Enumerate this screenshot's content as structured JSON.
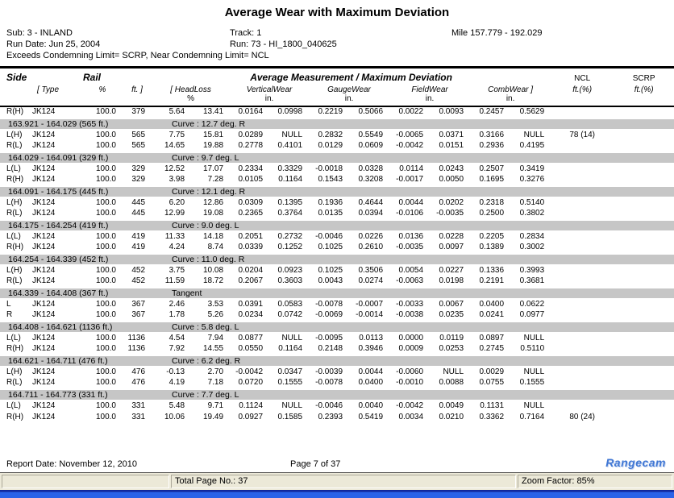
{
  "title": "Average Wear with Maximum Deviation",
  "info": {
    "sub": "Sub:  3 - INLAND",
    "track": "Track:  1",
    "mile": "Mile  157.779 - 192.029",
    "run_date": "Run Date: Jun 25, 2004",
    "run": "Run:  73 - HI_1800_040625",
    "limits_note": "Exceeds Condemning Limit= SCRP, Near Condemning Limit= NCL"
  },
  "table": {
    "headers": {
      "side": "Side",
      "rail": "Rail",
      "avg_max": "Average Measurement  / Maximum Deviation",
      "ncl": "NCL",
      "scrp": "SCRP",
      "type": "[ Type",
      "pct": "%",
      "ft": "ft. ]",
      "headloss": "[ HeadLoss",
      "vertical": "VerticalWear",
      "gauge": "GaugeWear",
      "field": "FieldWear",
      "comb": "CombWear ]",
      "ncl_unit": "ft.(%)",
      "scrp_unit": "ft.(%)",
      "headloss_unit": "%",
      "in_unit": "in."
    },
    "rows": [
      {
        "side": "R(H)",
        "rail": "JK124",
        "pct": "100.0",
        "ft": "379",
        "vals": [
          "5.64",
          "13.41",
          "0.0164",
          "0.0998",
          "0.2219",
          "0.5066",
          "0.0022",
          "0.0093",
          "0.2457",
          "0.5629"
        ],
        "ncl": "",
        "scrp": ""
      },
      {
        "section": true,
        "range": "163.921 - 164.029 (565 ft.)",
        "curve": "Curve : 12.7 deg. R"
      },
      {
        "side": "L(H)",
        "rail": "JK124",
        "pct": "100.0",
        "ft": "565",
        "vals": [
          "7.75",
          "15.81",
          "0.0289",
          "NULL",
          "0.2832",
          "0.5549",
          "-0.0065",
          "0.0371",
          "0.3166",
          "NULL"
        ],
        "ncl": "78 (14)",
        "scrp": ""
      },
      {
        "side": "R(L)",
        "rail": "JK124",
        "pct": "100.0",
        "ft": "565",
        "vals": [
          "14.65",
          "19.88",
          "0.2778",
          "0.4101",
          "0.0129",
          "0.0609",
          "-0.0042",
          "0.0151",
          "0.2936",
          "0.4195"
        ],
        "ncl": "",
        "scrp": ""
      },
      {
        "section": true,
        "range": "164.029 - 164.091 (329 ft.)",
        "curve": "Curve : 9.7 deg. L"
      },
      {
        "side": "L(L)",
        "rail": "JK124",
        "pct": "100.0",
        "ft": "329",
        "vals": [
          "12.52",
          "17.07",
          "0.2334",
          "0.3329",
          "-0.0018",
          "0.0328",
          "0.0114",
          "0.0243",
          "0.2507",
          "0.3419"
        ],
        "ncl": "",
        "scrp": ""
      },
      {
        "side": "R(H)",
        "rail": "JK124",
        "pct": "100.0",
        "ft": "329",
        "vals": [
          "3.98",
          "7.28",
          "0.0105",
          "0.1164",
          "0.1543",
          "0.3208",
          "-0.0017",
          "0.0050",
          "0.1695",
          "0.3276"
        ],
        "ncl": "",
        "scrp": ""
      },
      {
        "section": true,
        "range": "164.091 - 164.175 (445 ft.)",
        "curve": "Curve : 12.1 deg. R"
      },
      {
        "side": "L(H)",
        "rail": "JK124",
        "pct": "100.0",
        "ft": "445",
        "vals": [
          "6.20",
          "12.86",
          "0.0309",
          "0.1395",
          "0.1936",
          "0.4644",
          "0.0044",
          "0.0202",
          "0.2318",
          "0.5140"
        ],
        "ncl": "",
        "scrp": ""
      },
      {
        "side": "R(L)",
        "rail": "JK124",
        "pct": "100.0",
        "ft": "445",
        "vals": [
          "12.99",
          "19.08",
          "0.2365",
          "0.3764",
          "0.0135",
          "0.0394",
          "-0.0106",
          "-0.0035",
          "0.2500",
          "0.3802"
        ],
        "ncl": "",
        "scrp": ""
      },
      {
        "section": true,
        "range": "164.175 - 164.254 (419 ft.)",
        "curve": "Curve : 9.0 deg. L"
      },
      {
        "side": "L(L)",
        "rail": "JK124",
        "pct": "100.0",
        "ft": "419",
        "vals": [
          "11.33",
          "14.18",
          "0.2051",
          "0.2732",
          "-0.0046",
          "0.0226",
          "0.0136",
          "0.0228",
          "0.2205",
          "0.2834"
        ],
        "ncl": "",
        "scrp": ""
      },
      {
        "side": "R(H)",
        "rail": "JK124",
        "pct": "100.0",
        "ft": "419",
        "vals": [
          "4.24",
          "8.74",
          "0.0339",
          "0.1252",
          "0.1025",
          "0.2610",
          "-0.0035",
          "0.0097",
          "0.1389",
          "0.3002"
        ],
        "ncl": "",
        "scrp": ""
      },
      {
        "section": true,
        "range": "164.254 - 164.339 (452 ft.)",
        "curve": "Curve : 11.0 deg. R"
      },
      {
        "side": "L(H)",
        "rail": "JK124",
        "pct": "100.0",
        "ft": "452",
        "vals": [
          "3.75",
          "10.08",
          "0.0204",
          "0.0923",
          "0.1025",
          "0.3506",
          "0.0054",
          "0.0227",
          "0.1336",
          "0.3993"
        ],
        "ncl": "",
        "scrp": ""
      },
      {
        "side": "R(L)",
        "rail": "JK124",
        "pct": "100.0",
        "ft": "452",
        "vals": [
          "11.59",
          "18.72",
          "0.2067",
          "0.3603",
          "0.0043",
          "0.0274",
          "-0.0063",
          "0.0198",
          "0.2191",
          "0.3681"
        ],
        "ncl": "",
        "scrp": ""
      },
      {
        "section": true,
        "range": "164.339 - 164.408 (367 ft.)",
        "curve": "Tangent"
      },
      {
        "side": "L",
        "rail": "JK124",
        "pct": "100.0",
        "ft": "367",
        "vals": [
          "2.46",
          "3.53",
          "0.0391",
          "0.0583",
          "-0.0078",
          "-0.0007",
          "-0.0033",
          "0.0067",
          "0.0400",
          "0.0622"
        ],
        "ncl": "",
        "scrp": ""
      },
      {
        "side": "R",
        "rail": "JK124",
        "pct": "100.0",
        "ft": "367",
        "vals": [
          "1.78",
          "5.26",
          "0.0234",
          "0.0742",
          "-0.0069",
          "-0.0014",
          "-0.0038",
          "0.0235",
          "0.0241",
          "0.0977"
        ],
        "ncl": "",
        "scrp": ""
      },
      {
        "section": true,
        "range": "164.408 - 164.621 (1136 ft.)",
        "curve": "Curve : 5.8 deg. L"
      },
      {
        "side": "L(L)",
        "rail": "JK124",
        "pct": "100.0",
        "ft": "1136",
        "vals": [
          "4.54",
          "7.94",
          "0.0877",
          "NULL",
          "-0.0095",
          "0.0113",
          "0.0000",
          "0.0119",
          "0.0897",
          "NULL"
        ],
        "ncl": "",
        "scrp": ""
      },
      {
        "side": "R(H)",
        "rail": "JK124",
        "pct": "100.0",
        "ft": "1136",
        "vals": [
          "7.92",
          "14.55",
          "0.0550",
          "0.1164",
          "0.2148",
          "0.3946",
          "0.0009",
          "0.0253",
          "0.2745",
          "0.5110"
        ],
        "ncl": "",
        "scrp": ""
      },
      {
        "section": true,
        "range": "164.621 - 164.711 (476 ft.)",
        "curve": "Curve : 6.2 deg. R"
      },
      {
        "side": "L(H)",
        "rail": "JK124",
        "pct": "100.0",
        "ft": "476",
        "vals": [
          "-0.13",
          "2.70",
          "-0.0042",
          "0.0347",
          "-0.0039",
          "0.0044",
          "-0.0060",
          "NULL",
          "0.0029",
          "NULL"
        ],
        "ncl": "",
        "scrp": ""
      },
      {
        "side": "R(L)",
        "rail": "JK124",
        "pct": "100.0",
        "ft": "476",
        "vals": [
          "4.19",
          "7.18",
          "0.0720",
          "0.1555",
          "-0.0078",
          "0.0400",
          "-0.0010",
          "0.0088",
          "0.0755",
          "0.1555"
        ],
        "ncl": "",
        "scrp": ""
      },
      {
        "section": true,
        "range": "164.711 - 164.773 (331 ft.)",
        "curve": "Curve : 7.7 deg. L"
      },
      {
        "side": "L(L)",
        "rail": "JK124",
        "pct": "100.0",
        "ft": "331",
        "vals": [
          "5.48",
          "9.71",
          "0.1124",
          "NULL",
          "-0.0046",
          "0.0040",
          "-0.0042",
          "0.0049",
          "0.1131",
          "NULL"
        ],
        "ncl": "",
        "scrp": ""
      },
      {
        "side": "R(H)",
        "rail": "JK124",
        "pct": "100.0",
        "ft": "331",
        "vals": [
          "10.06",
          "19.49",
          "0.0927",
          "0.1585",
          "0.2393",
          "0.5419",
          "0.0034",
          "0.0210",
          "0.3362",
          "0.7164"
        ],
        "ncl": "80 (24)",
        "scrp": ""
      }
    ]
  },
  "footer": {
    "report_date": "Report Date:   November 12, 2010",
    "page_info": "Page 7 of 37",
    "brand": "Rangecam"
  },
  "statusbar": {
    "total_pages": "Total Page No.: 37",
    "zoom": "Zoom Factor: 85%"
  },
  "colors": {
    "section_band": "#c6c6c6",
    "statusbar_bg": "#ece9d8",
    "taskbar_blue": "#2a63e8",
    "brand_blue": "#4077d4"
  }
}
